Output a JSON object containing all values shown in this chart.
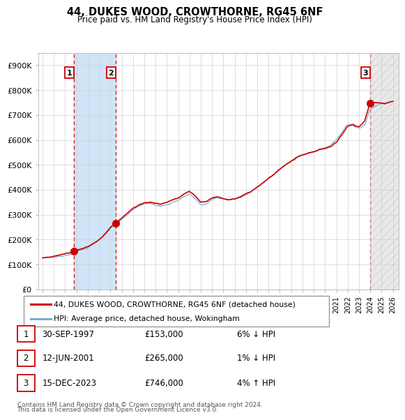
{
  "title": "44, DUKES WOOD, CROWTHORNE, RG45 6NF",
  "subtitle": "Price paid vs. HM Land Registry's House Price Index (HPI)",
  "ylim": [
    0,
    950000
  ],
  "yticks": [
    0,
    100000,
    200000,
    300000,
    400000,
    500000,
    600000,
    700000,
    800000,
    900000
  ],
  "ytick_labels": [
    "£0",
    "£100K",
    "£200K",
    "£300K",
    "£400K",
    "£500K",
    "£600K",
    "£700K",
    "£800K",
    "£900K"
  ],
  "hpi_color": "#7aadd4",
  "price_color": "#cc0000",
  "sale_marker_color": "#cc0000",
  "sale_vline_color": "#dd0000",
  "sale_box_color": "#cc0000",
  "grid_color": "#d0d0d0",
  "span_color": "#d0e4f7",
  "hatch_color": "#cccccc",
  "sales": [
    {
      "date_label": "30-SEP-1997",
      "year": 1997.75,
      "price": 153000,
      "label": "1",
      "relation": "6% ↓ HPI"
    },
    {
      "date_label": "12-JUN-2001",
      "year": 2001.45,
      "price": 265000,
      "label": "2",
      "relation": "1% ↓ HPI"
    },
    {
      "date_label": "15-DEC-2023",
      "year": 2023.96,
      "price": 746000,
      "label": "3",
      "relation": "4% ↑ HPI"
    }
  ],
  "legend_entries": [
    "44, DUKES WOOD, CROWTHORNE, RG45 6NF (detached house)",
    "HPI: Average price, detached house, Wokingham"
  ],
  "footer_lines": [
    "Contains HM Land Registry data © Crown copyright and database right 2024.",
    "This data is licensed under the Open Government Licence v3.0."
  ],
  "table_rows": [
    [
      "1",
      "30-SEP-1997",
      "£153,000",
      "6% ↓ HPI"
    ],
    [
      "2",
      "12-JUN-2001",
      "£265,000",
      "1% ↓ HPI"
    ],
    [
      "3",
      "15-DEC-2023",
      "£746,000",
      "4% ↑ HPI"
    ]
  ]
}
